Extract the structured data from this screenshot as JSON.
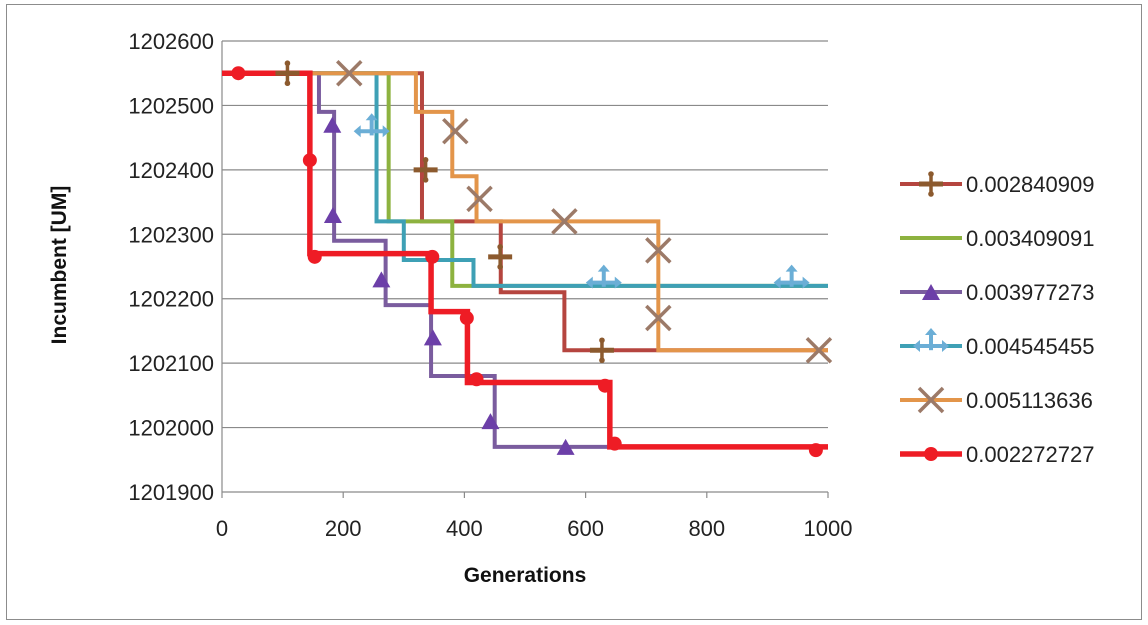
{
  "chart_data": {
    "type": "line",
    "title": "",
    "xlabel": "Generations",
    "ylabel": "Incumbent [UM]",
    "xlim": [
      0,
      1000
    ],
    "ylim": [
      1201900,
      1202600
    ],
    "xticks": [
      0,
      200,
      400,
      600,
      800,
      1000
    ],
    "yticks": [
      1201900,
      1202000,
      1202100,
      1202200,
      1202300,
      1202400,
      1202500,
      1202600
    ],
    "grid": "horizontal",
    "legend_position": "right",
    "step": "post",
    "series": [
      {
        "name": "0.002840909",
        "color": "#b5453f",
        "marker": "plus",
        "marker_color": "#8c5a2e",
        "x": [
          0,
          330,
          460,
          565,
          720,
          1000
        ],
        "y": [
          1202550,
          1202320,
          1202210,
          1202120,
          1202120,
          1202120
        ],
        "marker_x": [
          108,
          336,
          459,
          627
        ],
        "marker_y": [
          1202550,
          1202400,
          1202265,
          1202120
        ]
      },
      {
        "name": "0.003409091",
        "color": "#8db23f",
        "marker": "none",
        "x": [
          0,
          275,
          380,
          400,
          1000
        ],
        "y": [
          1202550,
          1202320,
          1202220,
          1202220,
          1202220
        ],
        "marker_x": [],
        "marker_y": []
      },
      {
        "name": "0.003977273",
        "color": "#7a5c9e",
        "marker": "triangle",
        "marker_color": "#6c3fa8",
        "x": [
          0,
          160,
          185,
          270,
          345,
          450,
          1000
        ],
        "y": [
          1202550,
          1202490,
          1202290,
          1202190,
          1202080,
          1201970,
          1201970
        ],
        "marker_x": [
          182,
          183,
          263,
          348,
          443,
          567
        ],
        "marker_y": [
          1202470,
          1202330,
          1202230,
          1202140,
          1202010,
          1201970
        ]
      },
      {
        "name": "0.004545455",
        "color": "#3ea0b5",
        "marker": "cross-arrows",
        "marker_color": "#6baed6",
        "x": [
          0,
          255,
          300,
          415,
          1000
        ],
        "y": [
          1202550,
          1202320,
          1202260,
          1202220,
          1202220
        ],
        "marker_x": [
          247,
          630,
          940
        ],
        "marker_y": [
          1202460,
          1202225,
          1202225
        ]
      },
      {
        "name": "0.005113636",
        "color": "#e3954a",
        "marker": "x",
        "marker_color": "#9c7a68",
        "x": [
          0,
          320,
          380,
          420,
          720,
          1000
        ],
        "y": [
          1202550,
          1202490,
          1202390,
          1202320,
          1202120,
          1202120
        ],
        "marker_x": [
          210,
          385,
          425,
          565,
          720,
          720,
          985
        ],
        "marker_y": [
          1202550,
          1202460,
          1202355,
          1202320,
          1202275,
          1202170,
          1202120
        ]
      },
      {
        "name": "0.002272727",
        "color": "#ee1c25",
        "marker": "circle",
        "marker_color": "#ee1c25",
        "x": [
          0,
          145,
          345,
          405,
          420,
          640,
          1000
        ],
        "y": [
          1202550,
          1202270,
          1202180,
          1202070,
          1202070,
          1201970,
          1201970
        ],
        "marker_x": [
          27,
          145,
          153,
          347,
          404,
          420,
          632,
          648,
          980
        ],
        "marker_y": [
          1202550,
          1202415,
          1202265,
          1202265,
          1202170,
          1202075,
          1202065,
          1201975,
          1201965
        ]
      }
    ]
  }
}
